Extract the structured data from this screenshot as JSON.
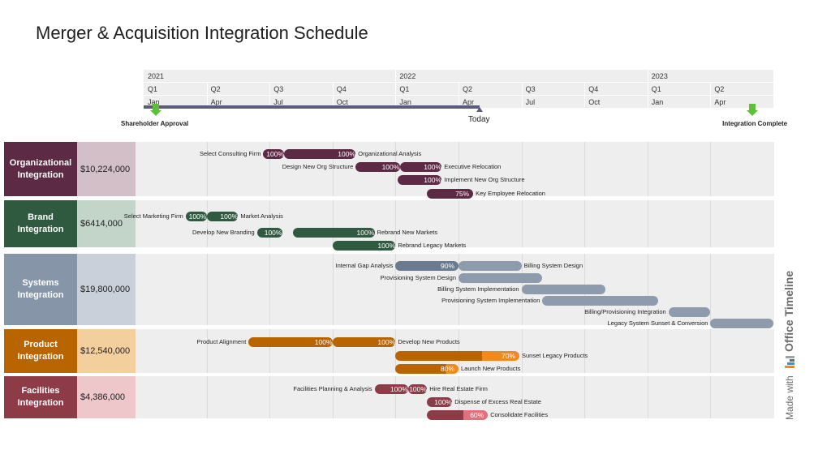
{
  "title": "Merger & Acquisition Integration Schedule",
  "chart_data": {
    "type": "gantt",
    "time_start": "2021-01",
    "years": [
      "2021",
      "2022",
      "2023"
    ],
    "quarters": [
      "Q1",
      "Q2",
      "Q3",
      "Q4",
      "Q1",
      "Q2",
      "Q3",
      "Q4",
      "Q1",
      "Q2"
    ],
    "months": [
      "Jan",
      "Apr",
      "Jul",
      "Oct",
      "Jan",
      "Apr",
      "Jul",
      "Oct",
      "Jan",
      "Apr"
    ],
    "today": {
      "label": "Today",
      "date": "2022-05"
    },
    "milestones": [
      {
        "label": "Shareholder Approval",
        "date": "2021-01"
      },
      {
        "label": "Integration Complete",
        "date": "2023-06"
      }
    ],
    "groups": [
      {
        "name": "Organizational Integration",
        "cost": "$10,224,000",
        "color": "#5c2a44",
        "light": "#d2bfc8",
        "tasks": [
          {
            "name": "Select Consulting Firm",
            "pct": "100%",
            "start": 5.7,
            "end": 6.7,
            "label_side": "left"
          },
          {
            "name": "Organizational Analysis",
            "pct": "100%",
            "start": 6.7,
            "end": 10.1,
            "label_side": "right"
          },
          {
            "name": "Design New Org Structure",
            "pct": "100%",
            "start": 10.1,
            "end": 12.2,
            "label_side": "left"
          },
          {
            "name": "Executive Relocation",
            "pct": "100%",
            "start": 12.2,
            "end": 14.2,
            "label_side": "right"
          },
          {
            "name": "Implement New Org Structure",
            "pct": "100%",
            "start": 12.1,
            "end": 14.2,
            "label_side": "right"
          },
          {
            "name": "Key Employee Relocation",
            "pct": "75%",
            "start": 13.5,
            "end": 15.7,
            "label_side": "right"
          }
        ]
      },
      {
        "name": "Brand Integration",
        "cost": "$6414,000",
        "color": "#2f5a40",
        "light": "#c3d4c9",
        "tasks": [
          {
            "name": "Select Marketing Firm",
            "pct": "100%",
            "start": 2.0,
            "end": 3.0,
            "label_side": "left"
          },
          {
            "name": "Market Analysis",
            "pct": "100%",
            "start": 3.0,
            "end": 4.5,
            "label_side": "right"
          },
          {
            "name": "Develop New Branding",
            "pct": "100%",
            "start": 5.4,
            "end": 6.6,
            "label_side": "left"
          },
          {
            "name": "Rebrand New Markets",
            "pct": "100%",
            "start": 7.1,
            "end": 11.0,
            "label_side": "right"
          },
          {
            "name": "Rebrand Legacy Markets",
            "pct": "100%",
            "start": 9.0,
            "end": 12.0,
            "label_side": "right"
          }
        ]
      },
      {
        "name": "Systems Integration",
        "cost": "$19,800,000",
        "color": "#8795a8",
        "light": "#c9d0d9",
        "tasks": [
          {
            "name": "Internal Gap Analysis",
            "pct": "90%",
            "start": 12.0,
            "end": 15.0,
            "label_side": "left"
          },
          {
            "name": "Billing System Design",
            "pct": "",
            "start": 15.0,
            "end": 18.0,
            "label_side": "right"
          },
          {
            "name": "Provisioning System Design",
            "pct": "",
            "start": 15.0,
            "end": 19.0,
            "label_side": "left"
          },
          {
            "name": "Billing System Implementation",
            "pct": "",
            "start": 18.0,
            "end": 22.0,
            "label_side": "left"
          },
          {
            "name": "Provisioning System Implementation",
            "pct": "",
            "start": 19.0,
            "end": 24.5,
            "label_side": "left"
          },
          {
            "name": "Billing/Provisioning Integration",
            "pct": "",
            "start": 25.0,
            "end": 27.0,
            "label_side": "left"
          },
          {
            "name": "Legacy System Sunset & Conversion",
            "pct": "",
            "start": 27.0,
            "end": 30.0,
            "label_side": "left"
          }
        ]
      },
      {
        "name": "Product Integration",
        "cost": "$12,540,000",
        "color": "#b86400",
        "light": "#f4cf9e",
        "accent": "#f08a1c",
        "tasks": [
          {
            "name": "Product Alignment",
            "pct": "100%",
            "start": 5.0,
            "end": 9.0,
            "label_side": "left"
          },
          {
            "name": "Develop New Products",
            "pct": "100%",
            "start": 9.0,
            "end": 12.0,
            "label_side": "right"
          },
          {
            "name": "Sunset Legacy Products",
            "pct": "70%",
            "start": 12.0,
            "end": 17.9,
            "label_side": "right"
          },
          {
            "name": "Launch New Products",
            "pct": "80%",
            "start": 12.0,
            "end": 15.0,
            "label_side": "right"
          }
        ]
      },
      {
        "name": "Facilities Integration",
        "cost": "$4,386,000",
        "color": "#8e3b48",
        "light": "#eec7cb",
        "accent": "#e0707c",
        "tasks": [
          {
            "name": "Facilities Planning & Analysis",
            "pct": "100%",
            "start": 11.0,
            "end": 12.6,
            "label_side": "left"
          },
          {
            "name": "Hire Real Estate Firm",
            "pct": "100%",
            "start": 12.6,
            "end": 13.5,
            "label_side": "right"
          },
          {
            "name": "Dispense of Excess Real Estate",
            "pct": "100%",
            "start": 13.5,
            "end": 14.7,
            "label_side": "right"
          },
          {
            "name": "Consolidate Facilities",
            "pct": "60%",
            "start": 13.5,
            "end": 16.4,
            "label_side": "right"
          }
        ]
      }
    ]
  },
  "watermark": {
    "prefix": "Made with",
    "brand": "Office Timeline",
    "icon": "office-timeline-logo-icon"
  }
}
